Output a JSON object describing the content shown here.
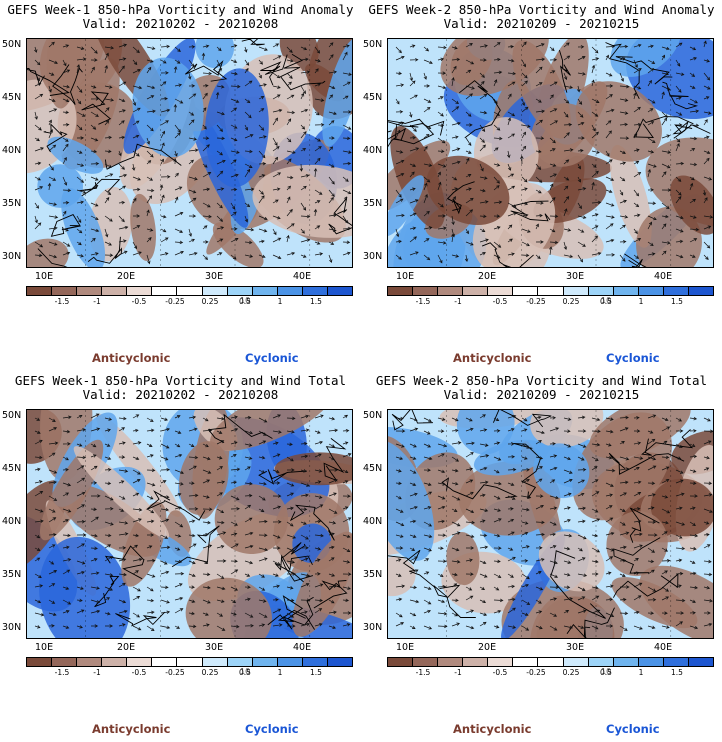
{
  "panels": [
    {
      "title_line1": "GEFS Week-1 850-hPa Vorticity and Wind Anomaly",
      "title_line2": "Valid: 20210202 - 20210208",
      "seed": 11
    },
    {
      "title_line1": "GEFS Week-2 850-hPa Vorticity and Wind Anomaly",
      "title_line2": "Valid: 20210209 - 20210215",
      "seed": 23
    },
    {
      "title_line1": "GEFS Week-1 850-hPa Vorticity and Wind Total",
      "title_line2": "Valid: 20210202 - 20210208",
      "seed": 37
    },
    {
      "title_line1": "GEFS Week-2 850-hPa Vorticity and Wind Total",
      "title_line2": "Valid: 20210209 - 20210215",
      "seed": 53
    }
  ],
  "lat_labels": [
    "50N",
    "45N",
    "40N",
    "35N",
    "30N"
  ],
  "lon_labels": [
    "10E",
    "20E",
    "30E",
    "40E"
  ],
  "colorbar": {
    "colors": [
      "#7a4a3a",
      "#94675a",
      "#b08a7e",
      "#cdb1a8",
      "#ecdcd6",
      "#ffffff",
      "#ffffff",
      "#cfeafc",
      "#9dd4f8",
      "#6fb4ee",
      "#4b93e6",
      "#2f6fdc",
      "#1d56d0"
    ],
    "labels": [
      "-1.5",
      "-1",
      "-0.5",
      "-0.25",
      "0.25",
      "0.5",
      "1",
      "1.5"
    ],
    "unit_note": "10"
  },
  "legend": {
    "anticyclonic": "Anticyclonic",
    "cyclonic": "Cyclonic"
  },
  "field_colors": {
    "neg_strong": "#7a4a3a",
    "neg": "#a07868",
    "neg_weak": "#d7bfb6",
    "pos_weak": "#bfe3fb",
    "pos": "#5fa6ec",
    "pos_strong": "#2a66da"
  }
}
